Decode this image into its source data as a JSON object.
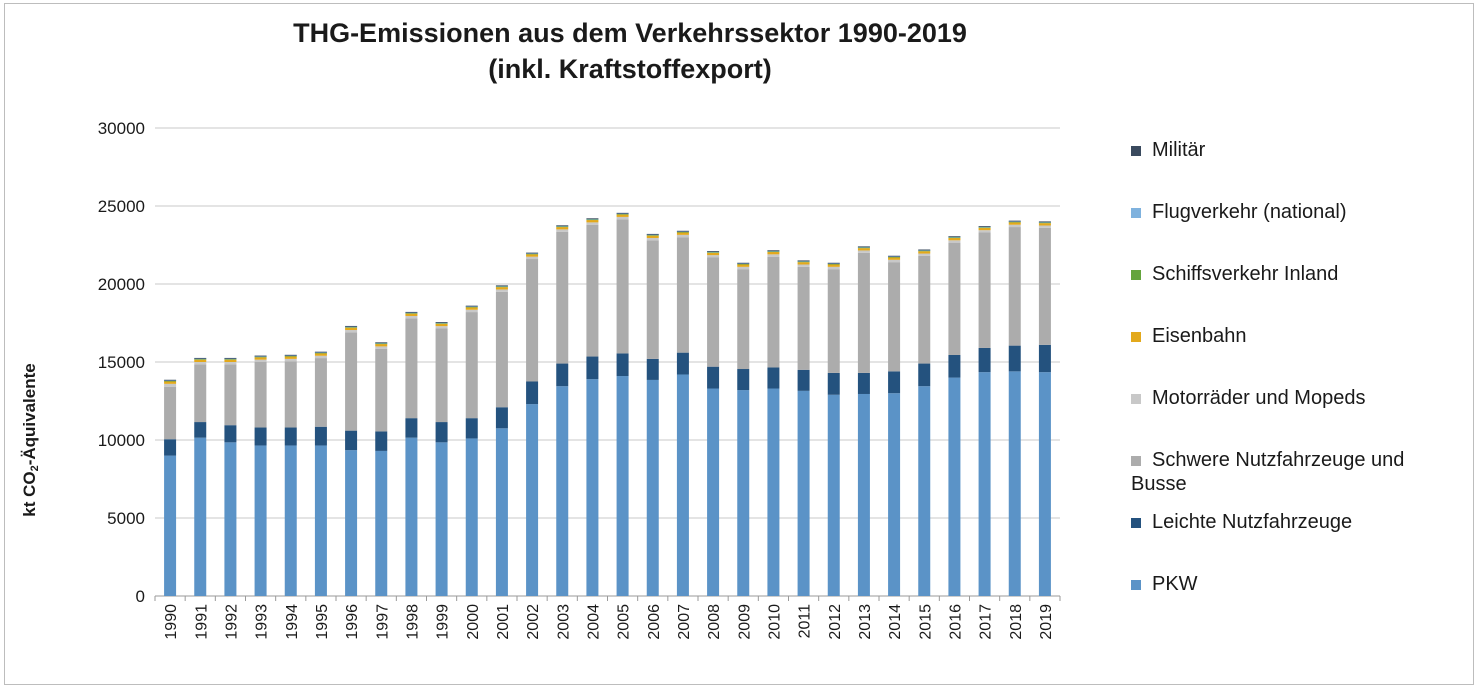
{
  "chart_data": {
    "type": "bar",
    "stacked": true,
    "title": "THG-Emissionen aus dem Verkehrssektor 1990-2019",
    "subtitle": "(inkl. Kraftstoffexport)",
    "xlabel": "",
    "ylabel_prefix": "kt CO",
    "ylabel_sub": "2",
    "ylabel_suffix": "-Äquivalente",
    "ylim": [
      0,
      30000
    ],
    "yticks": [
      0,
      5000,
      10000,
      15000,
      20000,
      25000,
      30000
    ],
    "grid": true,
    "legend_position": "right",
    "categories": [
      "1990",
      "1991",
      "1992",
      "1993",
      "1994",
      "1995",
      "1996",
      "1997",
      "1998",
      "1999",
      "2000",
      "2001",
      "2002",
      "2003",
      "2004",
      "2005",
      "2006",
      "2007",
      "2008",
      "2009",
      "2010",
      "2011",
      "2012",
      "2013",
      "2014",
      "2015",
      "2016",
      "2017",
      "2018",
      "2019"
    ],
    "series": [
      {
        "name": "PKW",
        "color": "#5b93c7",
        "values": [
          9000,
          10150,
          9850,
          9650,
          9650,
          9650,
          9350,
          9300,
          10150,
          9850,
          10100,
          10750,
          12300,
          13450,
          13900,
          14100,
          13850,
          14200,
          13300,
          13200,
          13300,
          13150,
          12900,
          12950,
          13000,
          13450,
          14000,
          14350,
          14400,
          14350
        ]
      },
      {
        "name": "Leichte Nutzfahrzeuge",
        "color": "#24527e",
        "values": [
          1050,
          1000,
          1100,
          1150,
          1150,
          1200,
          1250,
          1250,
          1250,
          1300,
          1300,
          1350,
          1450,
          1450,
          1450,
          1450,
          1350,
          1400,
          1400,
          1350,
          1350,
          1350,
          1400,
          1350,
          1400,
          1450,
          1450,
          1550,
          1650,
          1750
        ]
      },
      {
        "name": "Schwere Nutzfahrzeuge und Busse",
        "color": "#acacac",
        "values": [
          3350,
          3700,
          3900,
          4200,
          4250,
          4400,
          6300,
          5300,
          6400,
          6000,
          6800,
          7400,
          7850,
          8450,
          8450,
          8600,
          7600,
          7400,
          7000,
          6400,
          7100,
          6600,
          6650,
          7700,
          7000,
          6900,
          7200,
          7400,
          7600,
          7500
        ]
      },
      {
        "name": "Motorräder und Mopeds",
        "color": "#c8c8c8",
        "values": [
          200,
          150,
          150,
          150,
          150,
          150,
          150,
          150,
          150,
          150,
          150,
          150,
          150,
          150,
          150,
          150,
          150,
          150,
          150,
          150,
          150,
          150,
          150,
          150,
          150,
          150,
          150,
          150,
          150,
          150
        ]
      },
      {
        "name": "Eisenbahn",
        "color": "#e3a91c",
        "values": [
          150,
          150,
          150,
          150,
          150,
          150,
          150,
          150,
          150,
          150,
          150,
          150,
          150,
          150,
          150,
          150,
          150,
          150,
          150,
          150,
          150,
          150,
          150,
          150,
          150,
          150,
          150,
          150,
          150,
          150
        ]
      },
      {
        "name": "Schiffsverkehr Inland",
        "color": "#64a43d",
        "values": [
          30,
          30,
          30,
          30,
          30,
          30,
          30,
          30,
          30,
          30,
          30,
          30,
          30,
          30,
          30,
          30,
          30,
          30,
          30,
          30,
          30,
          30,
          30,
          30,
          30,
          30,
          30,
          30,
          30,
          30
        ]
      },
      {
        "name": "Flugverkehr (national)",
        "color": "#7fb2de",
        "values": [
          30,
          30,
          30,
          30,
          30,
          30,
          30,
          30,
          30,
          30,
          30,
          30,
          30,
          30,
          30,
          30,
          30,
          30,
          30,
          30,
          30,
          30,
          30,
          30,
          30,
          30,
          30,
          30,
          30,
          30
        ]
      },
      {
        "name": "Militär",
        "color": "#3a4a5e",
        "values": [
          40,
          40,
          40,
          40,
          40,
          40,
          40,
          40,
          40,
          40,
          40,
          40,
          40,
          40,
          40,
          40,
          40,
          40,
          40,
          40,
          40,
          40,
          40,
          40,
          40,
          40,
          40,
          40,
          40,
          40
        ]
      }
    ],
    "legend_order": [
      "Militär",
      "Flugverkehr (national)",
      "Schiffsverkehr Inland",
      "Eisenbahn",
      "Motorräder und Mopeds",
      "Schwere Nutzfahrzeuge und Busse",
      "Leichte Nutzfahrzeuge",
      "PKW"
    ]
  }
}
